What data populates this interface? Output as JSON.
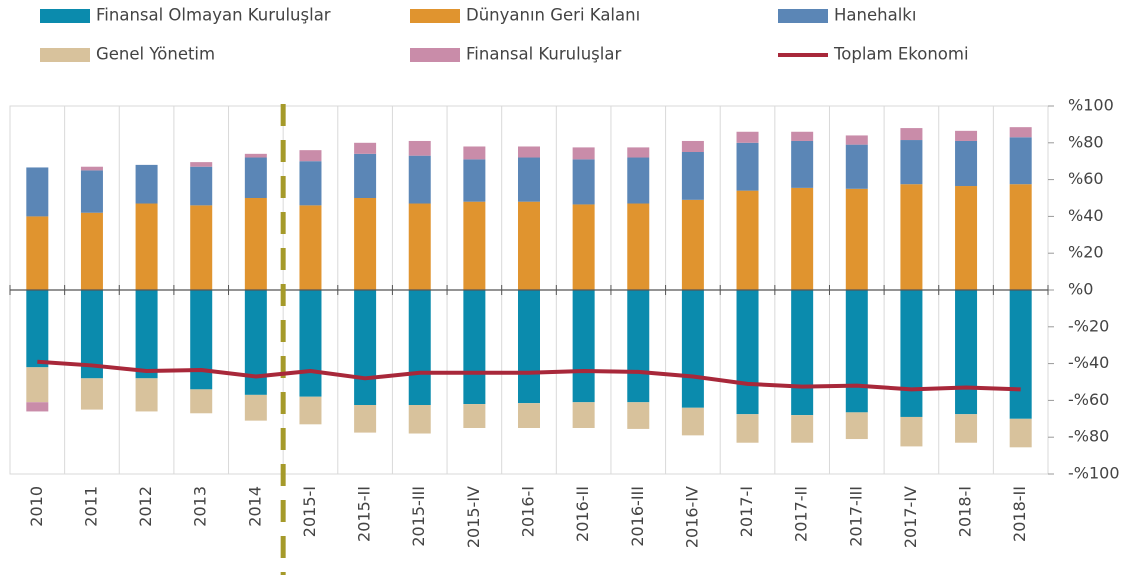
{
  "chart_data": {
    "type": "bar",
    "stacked": true,
    "categories": [
      "2010",
      "2011",
      "2012",
      "2013",
      "2014",
      "2015-I",
      "2015-II",
      "2015-III",
      "2015-IV",
      "2016-I",
      "2016-II",
      "2016-III",
      "2016-IV",
      "2017-I",
      "2017-II",
      "2017-III",
      "2017-IV",
      "2018-I",
      "2018-II"
    ],
    "series": [
      {
        "name": "Finansal Olmayan Kuruluşlar",
        "color": "#0b8bad",
        "values": [
          -42,
          -48,
          -48,
          -54,
          -57,
          -58,
          -62.5,
          -62.5,
          -62,
          -61.5,
          -61,
          -61,
          -64,
          -67.5,
          -68,
          -66.5,
          -69,
          -67.5,
          -70
        ]
      },
      {
        "name": "Dünyanın Geri Kalanı",
        "color": "#e0942f",
        "values": [
          40,
          42,
          47,
          46,
          50,
          46,
          50,
          47,
          48,
          48,
          46.5,
          47,
          49,
          54,
          55.5,
          55,
          57.5,
          56.5,
          57.5
        ]
      },
      {
        "name": "Hanehalkı",
        "color": "#5b86b6",
        "values": [
          26.6,
          23,
          21,
          21,
          22,
          24,
          24,
          26,
          23,
          24,
          24.5,
          25,
          26,
          26,
          25.5,
          24,
          24,
          24.5,
          25.5
        ]
      },
      {
        "name": "Genel Yönetim",
        "color": "#d8c29c",
        "values": [
          -19,
          -17,
          -18,
          -13,
          -14,
          -15,
          -15,
          -15.5,
          -13,
          -13.5,
          -14,
          -14.5,
          -15,
          -15.5,
          -15,
          -14.5,
          -16,
          -15.5,
          -15.5
        ]
      },
      {
        "name": "Finansal Kuruluşlar",
        "color": "#c98ca9",
        "values": [
          -5,
          2,
          0,
          2.5,
          2,
          6,
          6,
          8,
          7,
          6,
          6.5,
          5.5,
          6,
          6,
          5,
          5,
          6.5,
          5.5,
          5.5
        ]
      },
      {
        "name": "Toplam Ekonomi",
        "type": "line",
        "color": "#a8283a",
        "values": [
          -39,
          -41,
          -44,
          -43.5,
          -47,
          -44,
          -48,
          -45,
          -45,
          -45,
          -44,
          -44.5,
          -47,
          -51,
          -52.5,
          -52,
          -54,
          -53,
          -54
        ]
      }
    ],
    "ylim": [
      -100,
      100
    ],
    "yticks": [
      {
        "value": 100,
        "label": "%100"
      },
      {
        "value": 80,
        "label": "%80"
      },
      {
        "value": 60,
        "label": "%60"
      },
      {
        "value": 40,
        "label": "%40"
      },
      {
        "value": 20,
        "label": "%20"
      },
      {
        "value": 0,
        "label": "%0"
      },
      {
        "value": -20,
        "label": "-%20"
      },
      {
        "value": -40,
        "label": "-%40"
      },
      {
        "value": -60,
        "label": "-%60"
      },
      {
        "value": -80,
        "label": "-%80"
      },
      {
        "value": -100,
        "label": "-%100"
      }
    ],
    "legend": "top"
  }
}
